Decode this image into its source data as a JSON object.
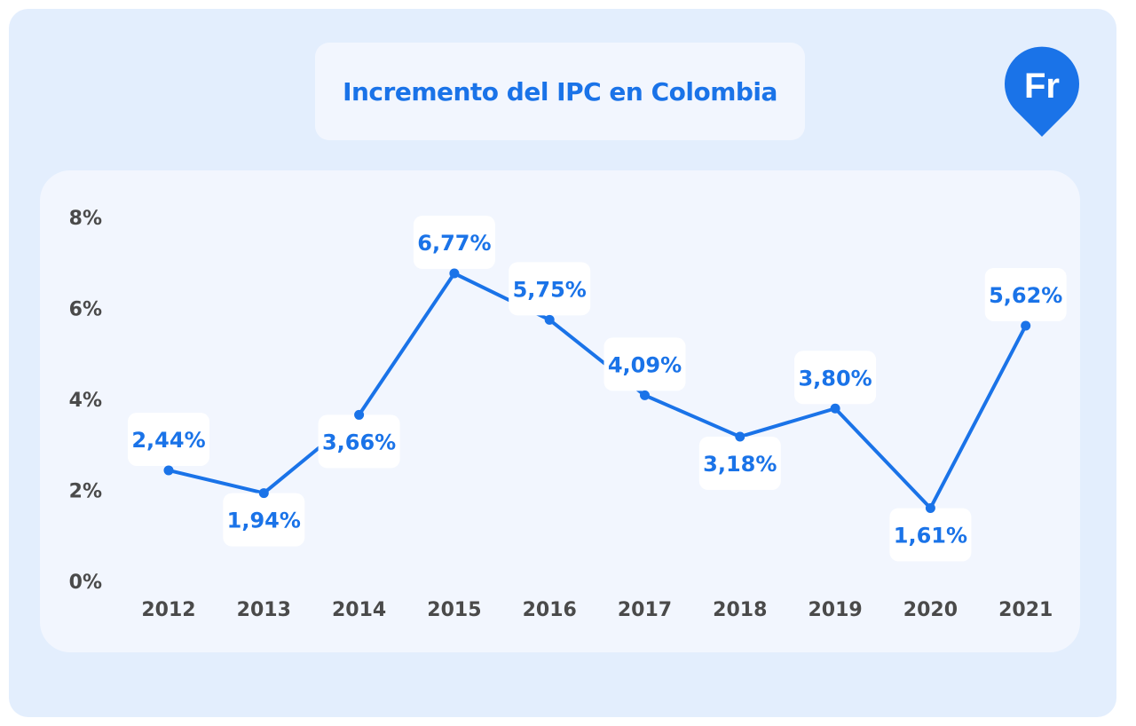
{
  "title": "Incremento del IPC en Colombia",
  "logo": {
    "text": "Fr",
    "color": "#1a73e8"
  },
  "colors": {
    "accent": "#1a73e8",
    "background": "#e3eefd",
    "panel": "#f2f6fe"
  },
  "chart_data": {
    "type": "line",
    "title": "Incremento del IPC en Colombia",
    "categories": [
      "2012",
      "2013",
      "2014",
      "2015",
      "2016",
      "2017",
      "2018",
      "2019",
      "2020",
      "2021"
    ],
    "values": [
      2.44,
      1.94,
      3.66,
      6.77,
      5.75,
      4.09,
      3.18,
      3.8,
      1.61,
      5.62
    ],
    "data_labels": [
      "2,44%",
      "1,94%",
      "3,66%",
      "6,77%",
      "5,75%",
      "4,09%",
      "3,18%",
      "3,80%",
      "1,61%",
      "5,62%"
    ],
    "label_positions": [
      "above",
      "below",
      "below",
      "above",
      "above",
      "above",
      "below",
      "above",
      "below",
      "above"
    ],
    "y_ticks": [
      "0%",
      "2%",
      "4%",
      "6%",
      "8%"
    ],
    "ylim": [
      0,
      8
    ],
    "grid": false,
    "legend": "none",
    "series_color": "#1a73e8"
  }
}
